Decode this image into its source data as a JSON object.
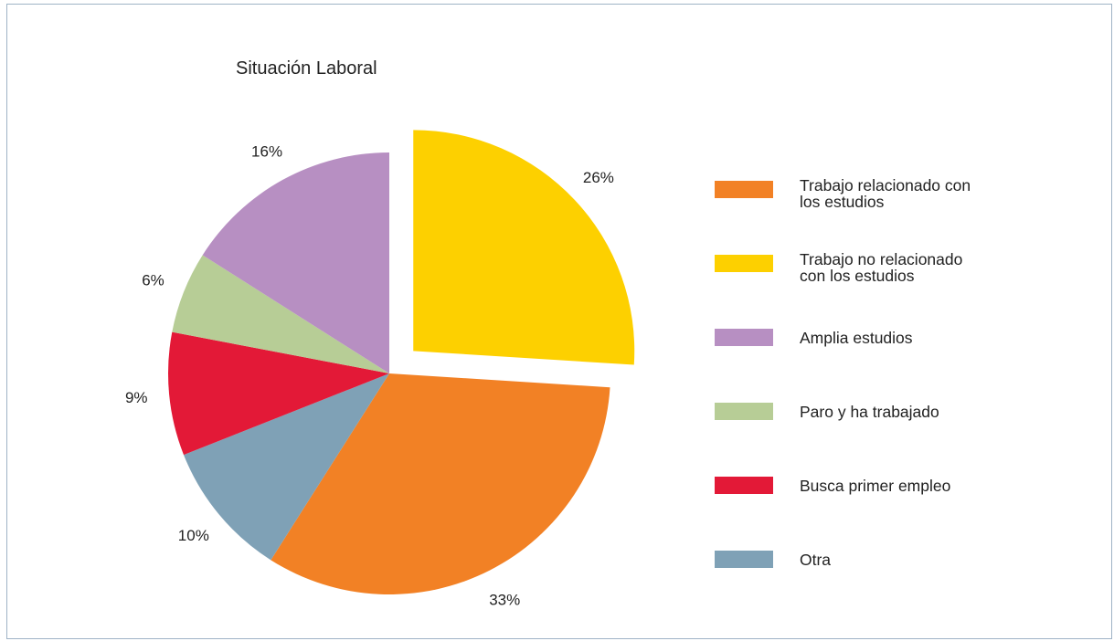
{
  "chart_data": {
    "type": "pie",
    "title": "Situación Laboral",
    "start_angle_deg": 0,
    "direction": "clockwise",
    "exploded": [
      "Trabajo no relacionado con los estudios"
    ],
    "slices": [
      {
        "name": "Trabajo no relacionado con los estudios",
        "value": 26,
        "label": "26%",
        "color": "#FDD000"
      },
      {
        "name": "Trabajo relacionado con los estudios",
        "value": 33,
        "label": "33%",
        "color": "#F28125"
      },
      {
        "name": "Otra",
        "value": 10,
        "label": "10%",
        "color": "#7FA1B6"
      },
      {
        "name": "Busca primer empleo",
        "value": 9,
        "label": "9%",
        "color": "#E31937"
      },
      {
        "name": "Paro y ha trabajado",
        "value": 6,
        "label": "6%",
        "color": "#B7CD96"
      },
      {
        "name": "Amplia estudios",
        "value": 16,
        "label": "16%",
        "color": "#B78FC2"
      }
    ],
    "legend": [
      {
        "label_lines": [
          "Trabajo relacionado con",
          "los estudios"
        ],
        "color": "#F28125"
      },
      {
        "label_lines": [
          "Trabajo no relacionado",
          "con los estudios"
        ],
        "color": "#FDD000"
      },
      {
        "label_lines": [
          "Amplia estudios"
        ],
        "color": "#B78FC2"
      },
      {
        "label_lines": [
          "Paro y ha trabajado"
        ],
        "color": "#B7CD96"
      },
      {
        "label_lines": [
          "Busca primer empleo"
        ],
        "color": "#E31937"
      },
      {
        "label_lines": [
          "Otra"
        ],
        "color": "#7FA1B6"
      }
    ],
    "legend_position": "right"
  }
}
